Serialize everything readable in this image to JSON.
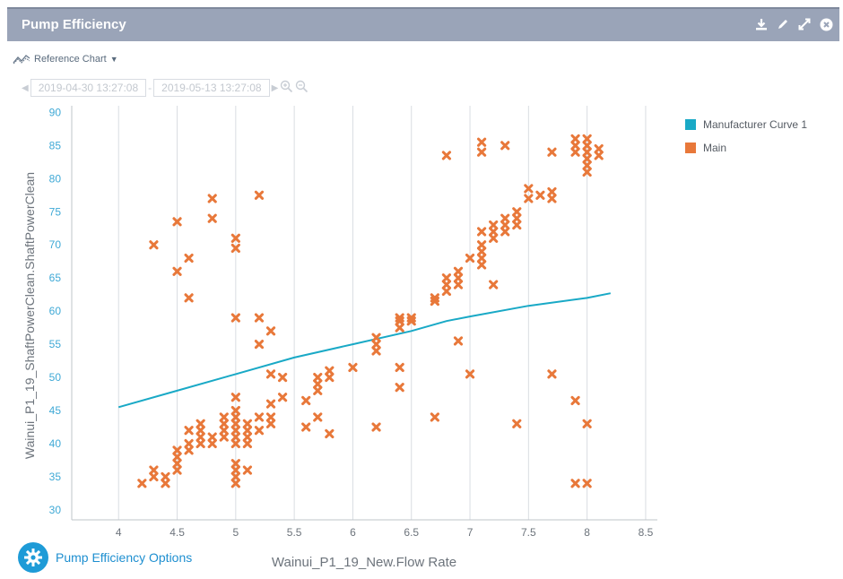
{
  "window": {
    "title": "Pump Efficiency",
    "icons": [
      "download-icon",
      "edit-icon",
      "expand-icon",
      "close-icon"
    ]
  },
  "toolbar": {
    "reference_chart_label": "Reference Chart",
    "date_from": "2019-04-30 13:27:08",
    "date_to": "2019-05-13 13:27:08"
  },
  "options": {
    "label": "Pump Efficiency Options"
  },
  "colors": {
    "accent": "#1e9bd7",
    "main_series": "#e8783a",
    "curve_series": "#19a9c6",
    "titlebar": "#9aa4b8"
  },
  "chart_data": {
    "type": "scatter",
    "xlabel": "Wainui_P1_19_New.Flow Rate",
    "ylabel": "Wainui_P1_19_ShaftPowerClean.ShaftPowerClean",
    "xlim": [
      3.6,
      8.6
    ],
    "ylim": [
      28.5,
      91
    ],
    "x_ticks": [
      "4",
      "4.5",
      "5",
      "5.5",
      "6",
      "6.5",
      "7",
      "7.5",
      "8",
      "8.5"
    ],
    "y_ticks": [
      "30",
      "35",
      "40",
      "45",
      "50",
      "55",
      "60",
      "65",
      "70",
      "75",
      "80",
      "85",
      "90"
    ],
    "grid": "vertical",
    "legend_position": "right",
    "series": [
      {
        "name": "Manufacturer Curve 1",
        "kind": "line",
        "points": [
          [
            4.0,
            45.5
          ],
          [
            4.5,
            48.0
          ],
          [
            5.0,
            50.5
          ],
          [
            5.5,
            53.0
          ],
          [
            6.0,
            55.0
          ],
          [
            6.5,
            57.0
          ],
          [
            6.8,
            58.5
          ],
          [
            7.0,
            59.2
          ],
          [
            7.5,
            60.8
          ],
          [
            8.0,
            62.0
          ],
          [
            8.2,
            62.7
          ]
        ]
      },
      {
        "name": "Main",
        "kind": "scatter",
        "points": [
          [
            4.2,
            34
          ],
          [
            4.3,
            35
          ],
          [
            4.3,
            36
          ],
          [
            4.4,
            34
          ],
          [
            4.4,
            35
          ],
          [
            4.3,
            70
          ],
          [
            4.5,
            36
          ],
          [
            4.5,
            37
          ],
          [
            4.5,
            38
          ],
          [
            4.5,
            39
          ],
          [
            4.5,
            66
          ],
          [
            4.5,
            73.5
          ],
          [
            4.6,
            39
          ],
          [
            4.6,
            40
          ],
          [
            4.6,
            42
          ],
          [
            4.6,
            68
          ],
          [
            4.6,
            62
          ],
          [
            4.7,
            40
          ],
          [
            4.7,
            41
          ],
          [
            4.7,
            42
          ],
          [
            4.7,
            43
          ],
          [
            4.8,
            40
          ],
          [
            4.8,
            41
          ],
          [
            4.8,
            74
          ],
          [
            4.8,
            77
          ],
          [
            4.9,
            41
          ],
          [
            4.9,
            42
          ],
          [
            4.9,
            43
          ],
          [
            4.9,
            44
          ],
          [
            5.0,
            34
          ],
          [
            5.0,
            35
          ],
          [
            5.0,
            36
          ],
          [
            5.0,
            37
          ],
          [
            5.0,
            40
          ],
          [
            5.0,
            41
          ],
          [
            5.0,
            42
          ],
          [
            5.0,
            43
          ],
          [
            5.0,
            44
          ],
          [
            5.0,
            45
          ],
          [
            5.0,
            47
          ],
          [
            5.0,
            59
          ],
          [
            5.0,
            69.5
          ],
          [
            5.0,
            71
          ],
          [
            5.1,
            36
          ],
          [
            5.1,
            40
          ],
          [
            5.1,
            41
          ],
          [
            5.1,
            42
          ],
          [
            5.1,
            43
          ],
          [
            5.2,
            42
          ],
          [
            5.2,
            44
          ],
          [
            5.2,
            55
          ],
          [
            5.2,
            59
          ],
          [
            5.2,
            77.5
          ],
          [
            5.3,
            43
          ],
          [
            5.3,
            44
          ],
          [
            5.3,
            46
          ],
          [
            5.3,
            50.5
          ],
          [
            5.3,
            57
          ],
          [
            5.4,
            47
          ],
          [
            5.4,
            50
          ],
          [
            5.6,
            42.5
          ],
          [
            5.6,
            46.5
          ],
          [
            5.7,
            44
          ],
          [
            5.7,
            48
          ],
          [
            5.7,
            49
          ],
          [
            5.7,
            50
          ],
          [
            5.8,
            41.5
          ],
          [
            5.8,
            50
          ],
          [
            5.8,
            51
          ],
          [
            6.0,
            51.5
          ],
          [
            6.2,
            42.5
          ],
          [
            6.2,
            54
          ],
          [
            6.2,
            55
          ],
          [
            6.2,
            56
          ],
          [
            6.4,
            48.5
          ],
          [
            6.4,
            51.5
          ],
          [
            6.4,
            57.5
          ],
          [
            6.4,
            58.5
          ],
          [
            6.4,
            59
          ],
          [
            6.5,
            58.5
          ],
          [
            6.5,
            59
          ],
          [
            6.7,
            44
          ],
          [
            6.7,
            61.5
          ],
          [
            6.7,
            62
          ],
          [
            6.8,
            63
          ],
          [
            6.8,
            64
          ],
          [
            6.8,
            65
          ],
          [
            6.8,
            83.5
          ],
          [
            6.9,
            55.5
          ],
          [
            6.9,
            64
          ],
          [
            6.9,
            65
          ],
          [
            6.9,
            66
          ],
          [
            7.0,
            50.5
          ],
          [
            7.0,
            68
          ],
          [
            7.1,
            67
          ],
          [
            7.1,
            68
          ],
          [
            7.1,
            69
          ],
          [
            7.1,
            70
          ],
          [
            7.1,
            72
          ],
          [
            7.1,
            84
          ],
          [
            7.1,
            85.5
          ],
          [
            7.2,
            64
          ],
          [
            7.2,
            71
          ],
          [
            7.2,
            72
          ],
          [
            7.2,
            73
          ],
          [
            7.3,
            72
          ],
          [
            7.3,
            73
          ],
          [
            7.3,
            74
          ],
          [
            7.3,
            85
          ],
          [
            7.4,
            43
          ],
          [
            7.4,
            73
          ],
          [
            7.4,
            74
          ],
          [
            7.4,
            75
          ],
          [
            7.5,
            77
          ],
          [
            7.5,
            78.5
          ],
          [
            7.6,
            77.5
          ],
          [
            7.7,
            50.5
          ],
          [
            7.7,
            77
          ],
          [
            7.7,
            78
          ],
          [
            7.7,
            84
          ],
          [
            7.9,
            34
          ],
          [
            7.9,
            46.5
          ],
          [
            7.9,
            84
          ],
          [
            7.9,
            85
          ],
          [
            7.9,
            86
          ],
          [
            8.0,
            34
          ],
          [
            8.0,
            43
          ],
          [
            8.0,
            81
          ],
          [
            8.0,
            82
          ],
          [
            8.0,
            83
          ],
          [
            8.0,
            84
          ],
          [
            8.0,
            85
          ],
          [
            8.0,
            86
          ],
          [
            8.1,
            83.5
          ],
          [
            8.1,
            84.5
          ]
        ]
      }
    ]
  }
}
